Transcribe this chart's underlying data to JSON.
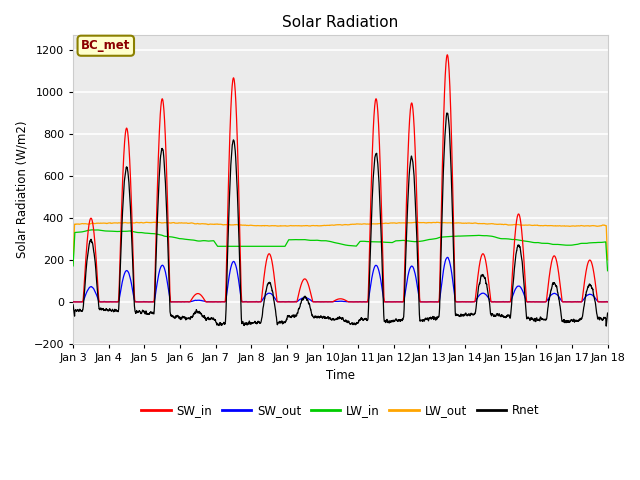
{
  "title": "Solar Radiation",
  "ylabel": "Solar Radiation (W/m2)",
  "xlabel": "Time",
  "ylim": [
    -200,
    1270
  ],
  "yticks": [
    -200,
    0,
    200,
    400,
    600,
    800,
    1000,
    1200
  ],
  "fig_facecolor": "#ffffff",
  "ax_facecolor": "#ebebeb",
  "annotation_label": "BC_met",
  "annotation_text_color": "#8b0000",
  "annotation_bg": "#ffffcc",
  "annotation_edge": "#8b8000",
  "line_colors": {
    "SW_in": "#ff0000",
    "SW_out": "#0000ff",
    "LW_in": "#00cc00",
    "LW_out": "#ffa500",
    "Rnet": "#000000"
  },
  "x_tick_labels": [
    "Jan 3",
    "Jan 4",
    "Jan 5",
    "Jan 6",
    "Jan 7",
    "Jan 8",
    "Jan 9",
    "Jan 10",
    "Jan 11",
    "Jan 12",
    "Jan 13",
    "Jan 14",
    "Jan 15",
    "Jan 16",
    "Jan 17",
    "Jan 18"
  ],
  "n_points": 3600,
  "seed": 42
}
